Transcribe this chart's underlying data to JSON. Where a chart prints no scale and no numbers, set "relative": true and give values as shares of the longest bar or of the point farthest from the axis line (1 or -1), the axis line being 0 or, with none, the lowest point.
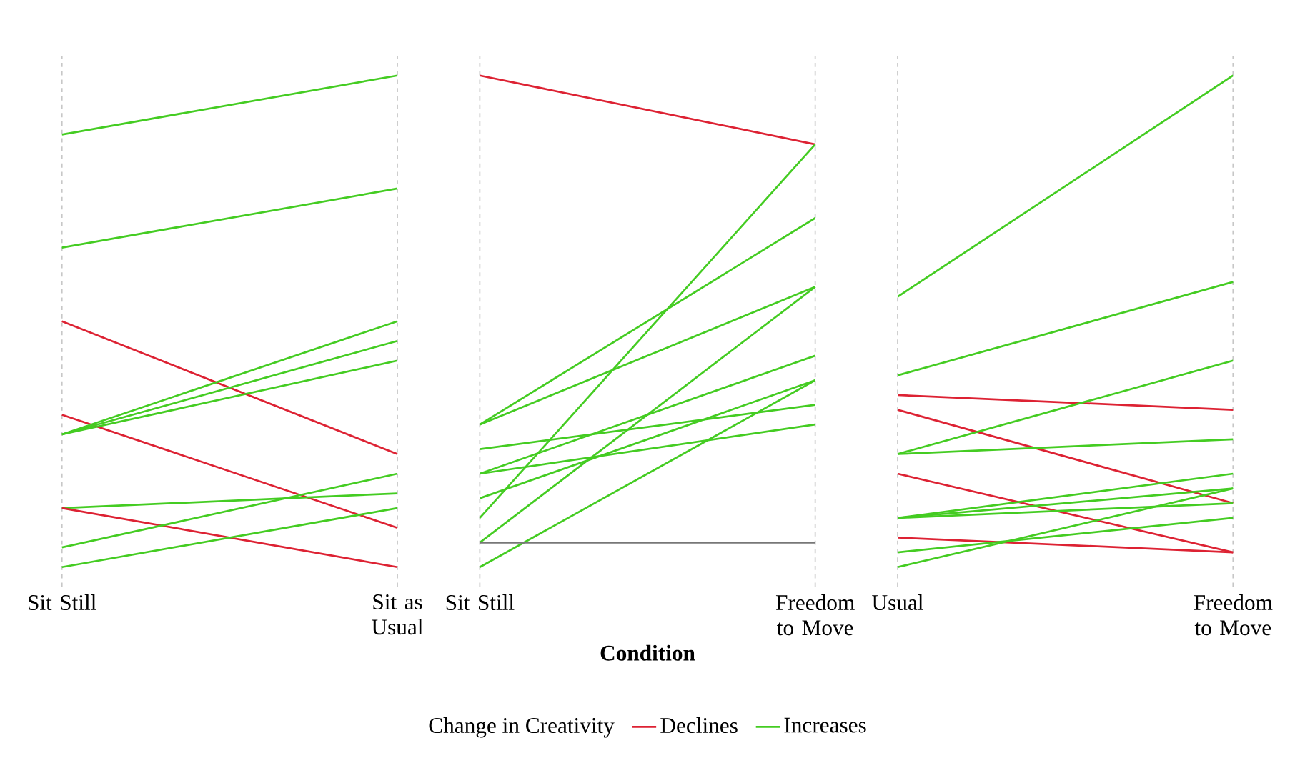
{
  "chart_data": [
    {
      "type": "line",
      "relative": true,
      "grid": "x",
      "categories": [
        "Sit Still",
        "Sit as Usual"
      ],
      "series": [
        {
          "color": "#44cc22",
          "values": [
            0.88,
            1.0
          ]
        },
        {
          "color": "#44cc22",
          "values": [
            0.65,
            0.77
          ]
        },
        {
          "color": "#dd2233",
          "values": [
            0.5,
            0.23
          ]
        },
        {
          "color": "#dd2233",
          "values": [
            0.31,
            0.08
          ]
        },
        {
          "color": "#44cc22",
          "values": [
            0.27,
            0.5
          ]
        },
        {
          "color": "#44cc22",
          "values": [
            0.27,
            0.46
          ]
        },
        {
          "color": "#44cc22",
          "values": [
            0.27,
            0.42
          ]
        },
        {
          "color": "#44cc22",
          "values": [
            0.12,
            0.15
          ]
        },
        {
          "color": "#dd2233",
          "values": [
            0.12,
            0.0
          ]
        },
        {
          "color": "#44cc22",
          "values": [
            0.04,
            0.19
          ]
        },
        {
          "color": "#44cc22",
          "values": [
            0.0,
            0.12
          ]
        }
      ]
    },
    {
      "type": "line",
      "relative": true,
      "grid": "x",
      "categories": [
        "Sit Still",
        "Freedom to Move"
      ],
      "xlabel": "Condition",
      "legend_title": "Change in Creativity",
      "legend": "bottom",
      "series": [
        {
          "name": "Declines",
          "color": "#dd2233",
          "values": [
            1.0,
            0.86
          ]
        },
        {
          "name": "Increases",
          "color": "#44cc22",
          "values": [
            0.29,
            0.71
          ]
        },
        {
          "color": "#44cc22",
          "values": [
            0.29,
            0.57
          ]
        },
        {
          "color": "#44cc22",
          "values": [
            0.1,
            0.86
          ]
        },
        {
          "color": "#44cc22",
          "values": [
            0.05,
            0.57
          ]
        },
        {
          "color": "#44cc22",
          "values": [
            0.0,
            0.38
          ]
        },
        {
          "color": "#777777",
          "values": [
            0.05,
            0.05
          ]
        },
        {
          "color": "#44cc22",
          "values": [
            0.24,
            0.33
          ]
        },
        {
          "color": "#44cc22",
          "values": [
            0.19,
            0.29
          ]
        },
        {
          "color": "#44cc22",
          "values": [
            0.19,
            0.43
          ]
        },
        {
          "color": "#44cc22",
          "values": [
            0.14,
            0.38
          ]
        }
      ]
    },
    {
      "type": "line",
      "relative": true,
      "grid": "x",
      "categories": [
        "Usual",
        "Freedom to Move"
      ],
      "series": [
        {
          "color": "#44cc22",
          "values": [
            0.55,
            1.0
          ]
        },
        {
          "color": "#44cc22",
          "values": [
            0.39,
            0.58
          ]
        },
        {
          "color": "#dd2233",
          "values": [
            0.35,
            0.32
          ]
        },
        {
          "color": "#dd2233",
          "values": [
            0.32,
            0.13
          ]
        },
        {
          "color": "#44cc22",
          "values": [
            0.23,
            0.42
          ]
        },
        {
          "color": "#44cc22",
          "values": [
            0.23,
            0.26
          ]
        },
        {
          "color": "#dd2233",
          "values": [
            0.19,
            0.03
          ]
        },
        {
          "color": "#44cc22",
          "values": [
            0.1,
            0.19
          ]
        },
        {
          "color": "#44cc22",
          "values": [
            0.1,
            0.16
          ]
        },
        {
          "color": "#44cc22",
          "values": [
            0.1,
            0.13
          ]
        },
        {
          "color": "#dd2233",
          "values": [
            0.06,
            0.03
          ]
        },
        {
          "color": "#44cc22",
          "values": [
            0.03,
            0.1
          ]
        },
        {
          "color": "#44cc22",
          "values": [
            0.0,
            0.16
          ]
        }
      ]
    }
  ]
}
